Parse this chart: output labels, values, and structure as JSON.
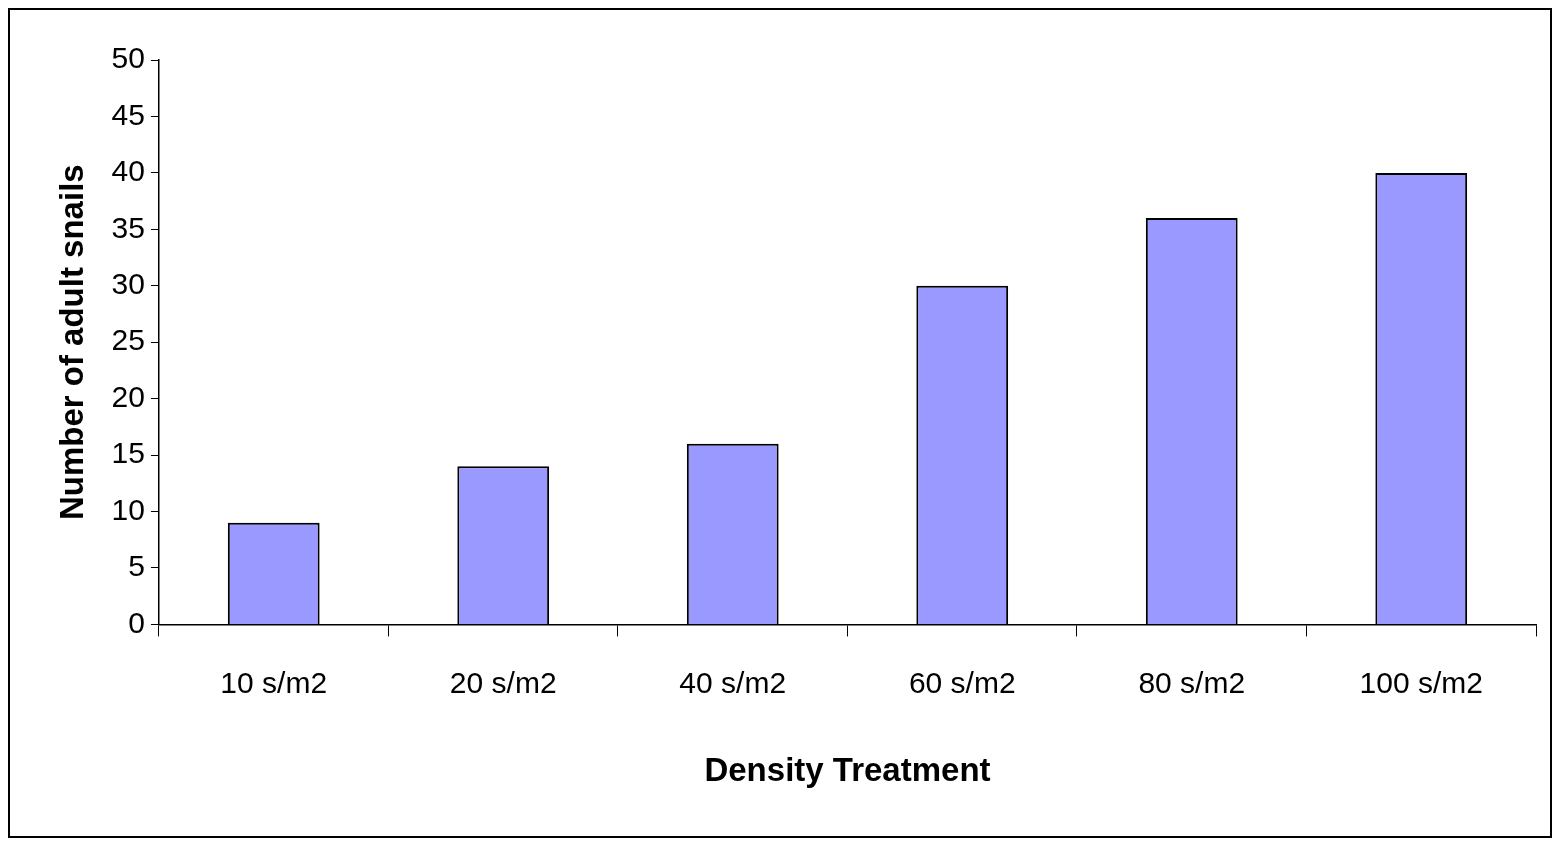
{
  "chart_data": {
    "type": "bar",
    "xlabel": "Density Treatment",
    "ylabel": "Number of adult snails",
    "categories": [
      "10 s/m2",
      "20 s/m2",
      "40 s/m2",
      "60 s/m2",
      "80 s/m2",
      "100 s/m2"
    ],
    "values": [
      9,
      14,
      16,
      30,
      36,
      40
    ],
    "color": "#9999ff",
    "ylim": [
      0,
      50
    ],
    "yticks": [
      0,
      5,
      10,
      15,
      20,
      25,
      30,
      35,
      40,
      45,
      50
    ],
    "grid": false,
    "legend": false
  }
}
